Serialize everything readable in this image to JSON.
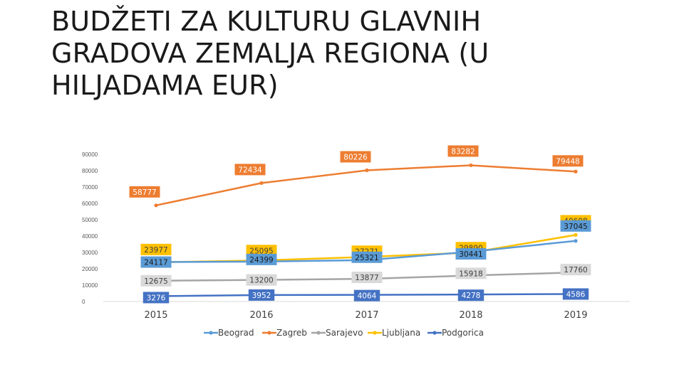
{
  "page": {
    "title": "BUDŽETI ZA KULTURU GLAVNIH GRADOVA ZEMALJA REGIONA (U HILJADAMA EUR)"
  },
  "chart_data": {
    "type": "line",
    "title": "BUDŽETI ZA KULTURU GLAVNIH GRADOVA ZEMALJA REGIONA (U HILJADAMA EUR)",
    "xlabel": "",
    "ylabel": "",
    "categories": [
      "2015",
      "2016",
      "2017",
      "2018",
      "2019"
    ],
    "y_ticks": [
      0,
      10000,
      20000,
      30000,
      40000,
      50000,
      60000,
      70000,
      80000,
      90000
    ],
    "y_tick_labels": [
      "0",
      "10000",
      "20000",
      "30000",
      "40000",
      "50000",
      "60000",
      "70000",
      "80000",
      "90000"
    ],
    "ylim": [
      0,
      90000
    ],
    "legend_position": "bottom",
    "series": [
      {
        "name": "Beograd",
        "color": "#5b9bd5",
        "label_bg": "#5b9bd5",
        "label_text_color": "#1a1a1a",
        "values": [
          24117,
          24399,
          25321,
          30441,
          37045
        ],
        "labels": [
          "24117",
          "24399",
          "25321",
          "30441",
          "37045"
        ]
      },
      {
        "name": "Zagreb",
        "color": "#ed7d31",
        "label_bg": "#ed7d31",
        "label_text_color": "#ffffff",
        "values": [
          58777,
          72434,
          80226,
          83282,
          79448
        ],
        "labels": [
          "58777",
          "72434",
          "80226",
          "83282",
          "79448"
        ]
      },
      {
        "name": "Sarajevo",
        "color": "#a5a5a5",
        "label_bg": "#d9d9d9",
        "label_text_color": "#404040",
        "values": [
          12675,
          13200,
          13877,
          15918,
          17760
        ],
        "labels": [
          "12675",
          "13200",
          "13877",
          "15918",
          "17760"
        ]
      },
      {
        "name": "Ljubljana",
        "color": "#ffc000",
        "label_bg": "#ffc000",
        "label_text_color": "#404040",
        "values": [
          23977,
          25095,
          27271,
          29890,
          40698
        ],
        "labels": [
          "23977",
          "25095",
          "27271",
          "29890",
          "40698"
        ]
      },
      {
        "name": "Podgorica",
        "color": "#4472c4",
        "label_bg": "#4472c4",
        "label_text_color": "#ffffff",
        "values": [
          3276,
          3952,
          4064,
          4278,
          4586
        ],
        "labels": [
          "3276",
          "3952",
          "4064",
          "4278",
          "4586"
        ]
      }
    ]
  }
}
